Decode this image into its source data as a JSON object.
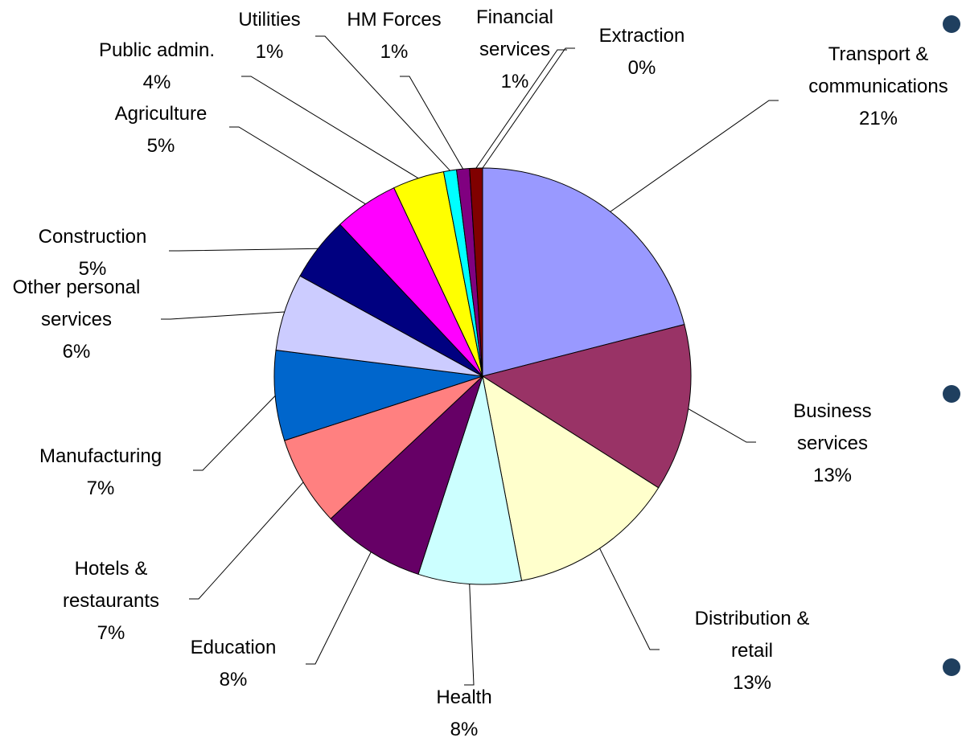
{
  "chart_data": {
    "type": "pie",
    "categories": [
      "Transport & communications",
      "Business services",
      "Distribution & retail",
      "Health",
      "Education",
      "Hotels & restaurants",
      "Manufacturing",
      "Other personal services",
      "Construction",
      "Agriculture",
      "Public admin.",
      "Utilities",
      "HM Forces",
      "Financial services",
      "Extraction"
    ],
    "values": [
      21,
      13,
      13,
      8,
      8,
      7,
      7,
      6,
      5,
      5,
      4,
      1,
      1,
      1,
      0
    ],
    "value_labels": [
      "21%",
      "13%",
      "13%",
      "8%",
      "8%",
      "7%",
      "7%",
      "6%",
      "5%",
      "5%",
      "4%",
      "1%",
      "1%",
      "1%",
      "0%"
    ],
    "colors": [
      "#9999ff",
      "#993366",
      "#ffffcc",
      "#ccffff",
      "#660066",
      "#ff8080",
      "#0066cc",
      "#ccccff",
      "#000080",
      "#ff00ff",
      "#ffff00",
      "#00ffff",
      "#800080",
      "#800000",
      "#0000ff"
    ]
  }
}
